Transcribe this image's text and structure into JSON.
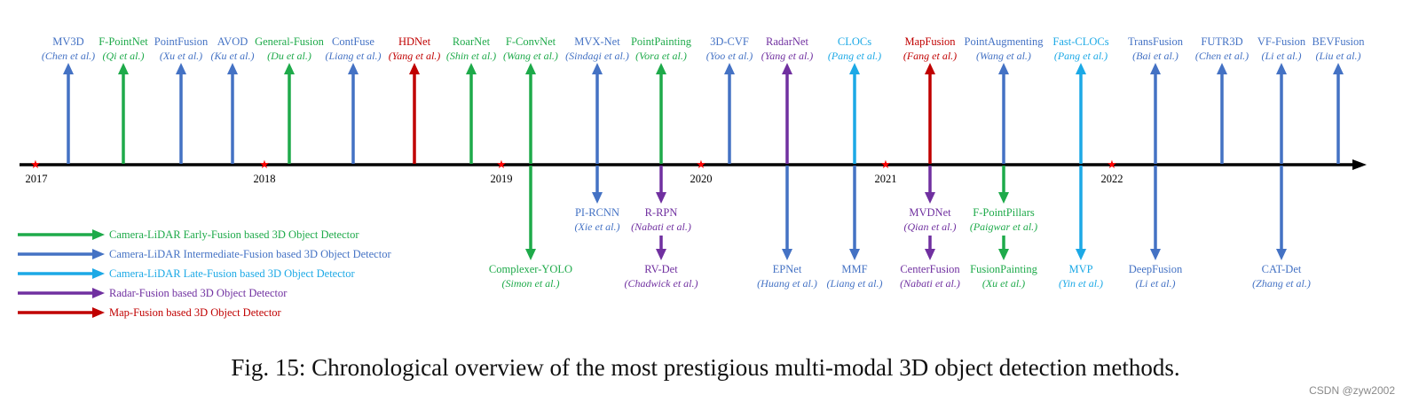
{
  "caption": "Fig. 15: Chronological overview of the most prestigious multi-modal 3D object detection methods.",
  "watermark": "CSDN @zyw2002",
  "colors": {
    "early": "#1eaa4a",
    "intermediate": "#4472c4",
    "late": "#1ca9e6",
    "radar": "#7030a0",
    "map": "#c00000",
    "axis": "#000000",
    "year_marker": "#ff0000"
  },
  "years": [
    "2017",
    "2018",
    "2019",
    "2020",
    "2021",
    "2022"
  ],
  "methods_above": [
    {
      "name": "MV3D",
      "author": "Chen et al.",
      "category": "intermediate",
      "order": 1
    },
    {
      "name": "F-PointNet",
      "author": "Qi et al.",
      "category": "early",
      "order": 2
    },
    {
      "name": "PointFusion",
      "author": "Xu et al.",
      "category": "intermediate",
      "order": 3
    },
    {
      "name": "AVOD",
      "author": "Ku et al.",
      "category": "intermediate",
      "order": 4
    },
    {
      "name": "General-Fusion",
      "author": "Du et al.",
      "category": "early",
      "order": 5
    },
    {
      "name": "ContFuse",
      "author": "Liang et al.",
      "category": "intermediate",
      "order": 6
    },
    {
      "name": "HDNet",
      "author": "Yang et al.",
      "category": "map",
      "order": 7
    },
    {
      "name": "RoarNet",
      "author": "Shin et al.",
      "category": "early",
      "order": 8
    },
    {
      "name": "F-ConvNet",
      "author": "Wang et al.",
      "category": "early",
      "order": 9
    },
    {
      "name": "MVX-Net",
      "author": "Sindagi et al.",
      "category": "intermediate",
      "order": 10
    },
    {
      "name": "PointPainting",
      "author": "Vora et al.",
      "category": "early",
      "order": 11
    },
    {
      "name": "3D-CVF",
      "author": "Yoo et al.",
      "category": "intermediate",
      "order": 12
    },
    {
      "name": "RadarNet",
      "author": "Yang et al.",
      "category": "radar",
      "order": 13
    },
    {
      "name": "CLOCs",
      "author": "Pang et al.",
      "category": "late",
      "order": 14
    },
    {
      "name": "MapFusion",
      "author": "Fang et al.",
      "category": "map",
      "order": 15
    },
    {
      "name": "PointAugmenting",
      "author": "Wang et al.",
      "category": "intermediate",
      "order": 16
    },
    {
      "name": "Fast-CLOCs",
      "author": "Pang et al.",
      "category": "late",
      "order": 17
    },
    {
      "name": "TransFusion",
      "author": "Bai et al.",
      "category": "intermediate",
      "order": 18
    },
    {
      "name": "FUTR3D",
      "author": "Chen et al.",
      "category": "intermediate",
      "order": 19
    },
    {
      "name": "VF-Fusion",
      "author": "Li et al.",
      "category": "intermediate",
      "order": 20
    },
    {
      "name": "BEVFusion",
      "author": "Liu et al.",
      "category": "intermediate",
      "order": 21
    }
  ],
  "methods_below": [
    {
      "name": "Complexer-YOLO",
      "author": "Simon et al.",
      "category": "early",
      "level": "low"
    },
    {
      "name": "PI-RCNN",
      "author": "Xie et al.",
      "category": "intermediate",
      "level": "mid"
    },
    {
      "name": "R-RPN",
      "author": "Nabati et al.",
      "category": "radar",
      "level": "mid"
    },
    {
      "name": "RV-Det",
      "author": "Chadwick et al.",
      "category": "radar",
      "level": "low"
    },
    {
      "name": "EPNet",
      "author": "Huang et al.",
      "category": "intermediate",
      "level": "low"
    },
    {
      "name": "MMF",
      "author": "Liang et al.",
      "category": "intermediate",
      "level": "low"
    },
    {
      "name": "MVDNet",
      "author": "Qian et al.",
      "category": "radar",
      "level": "mid"
    },
    {
      "name": "CenterFusion",
      "author": "Nabati et al.",
      "category": "radar",
      "level": "low"
    },
    {
      "name": "F-PointPillars",
      "author": "Paigwar et al.",
      "category": "early",
      "level": "mid"
    },
    {
      "name": "FusionPainting",
      "author": "Xu et al.",
      "category": "early",
      "level": "low"
    },
    {
      "name": "MVP",
      "author": "Yin et al.",
      "category": "late",
      "level": "low"
    },
    {
      "name": "DeepFusion",
      "author": "Li et al.",
      "category": "intermediate",
      "level": "low"
    },
    {
      "name": "CAT-Det",
      "author": "Zhang et al.",
      "category": "intermediate",
      "level": "low"
    }
  ],
  "legend": [
    {
      "label": "Camera-LiDAR Early-Fusion based 3D Object Detector",
      "category": "early"
    },
    {
      "label": "Camera-LiDAR Intermediate-Fusion based 3D Object Detector",
      "category": "intermediate"
    },
    {
      "label": "Camera-LiDAR Late-Fusion based 3D Object Detector",
      "category": "late"
    },
    {
      "label": "Radar-Fusion based 3D Object Detector",
      "category": "radar"
    },
    {
      "label": "Map-Fusion based 3D Object Detector",
      "category": "map"
    }
  ]
}
